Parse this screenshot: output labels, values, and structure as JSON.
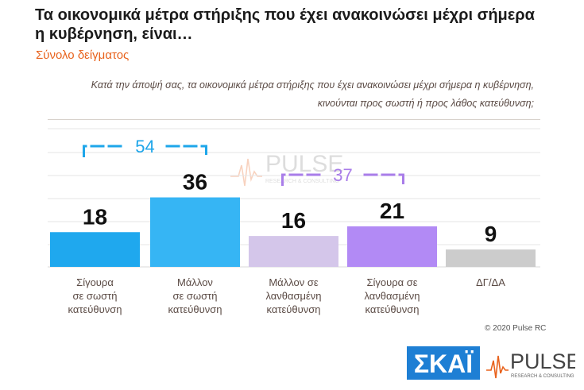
{
  "title": "Τα οικονομικά μέτρα στήριξης που έχει ανακοινώσει μέχρι σήμερα η κυβέρνηση, είναι…",
  "subtitle": "Σύνολο δείγματος",
  "question": "Κατά την άποψή σας, τα οικονομικά μέτρα στήριξης που έχει ανακοινώσει μέχρι σήμερα η κυβέρνηση, κινούνται προς σωστή ή προς λάθος κατεύθυνση;",
  "copyright": "© 2020 Pulse RC",
  "watermark": {
    "name": "PULSE",
    "tagline": "RESEARCH & CONSULTING"
  },
  "logos": {
    "skai": "ΣΚΑΪ",
    "pulse": "PULSE",
    "pulse_tagline": "RESEARCH & CONSULTING"
  },
  "chart_data": {
    "type": "bar",
    "categories": [
      [
        "Σίγουρα",
        "σε σωστή",
        "κατεύθυνση"
      ],
      [
        "Μάλλον",
        "σε σωστή",
        "κατεύθυνση"
      ],
      [
        "Μάλλον σε",
        "λανθασμένη",
        "κατεύθυνση"
      ],
      [
        "Σίγουρα σε",
        "λανθασμένη",
        "κατεύθυνση"
      ],
      [
        "ΔΓ/ΔΑ"
      ]
    ],
    "values": [
      18,
      36,
      16,
      21,
      9
    ],
    "colors": [
      "#1fa8ee",
      "#36b5f4",
      "#d4c6ea",
      "#b28af5",
      "#cccccc"
    ],
    "groups": [
      {
        "value": 54,
        "bars": [
          0,
          1
        ],
        "color": "#1ea6ea"
      },
      {
        "value": 37,
        "bars": [
          2,
          3
        ],
        "color": "#a97de9"
      }
    ],
    "gridlines": true,
    "ylim": [
      0,
      40
    ]
  }
}
